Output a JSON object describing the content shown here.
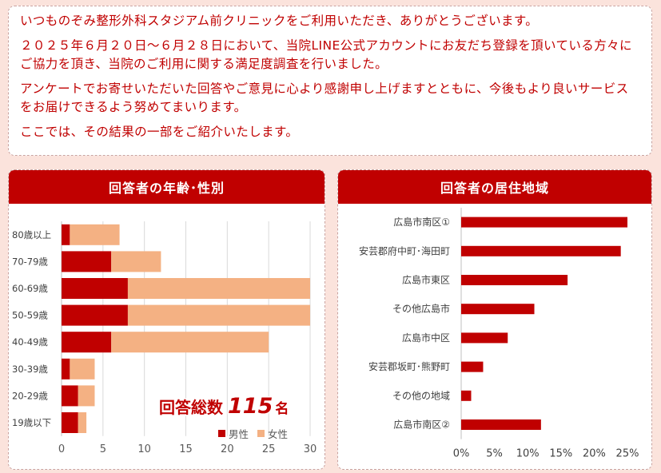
{
  "intro": {
    "line1": "いつものぞみ整形外科スタジアム前クリニックをご利用いただき、ありがとうございます。",
    "line2": "２０２５年６月２０日～６月２８日において、当院LINE公式アカウントにお友だち登録を頂いている方々にご協力を頂き、当院のご利用に関する満足度調査を行いました。",
    "line3": "アンケートでお寄せいただいた回答やご意見に心より感謝申し上げますとともに、今後もより良いサービスをお届けできるよう努めてまいります。",
    "line4": "ここでは、その結果の一部をご紹介いたします。"
  },
  "colors": {
    "male": "#c00000",
    "female": "#f4b183",
    "accent": "#c00000",
    "background": "#fbe3dc"
  },
  "total": {
    "label": "回答総数",
    "value": "115",
    "unit": "名"
  },
  "chart_data": [
    {
      "type": "bar",
      "orientation": "horizontal",
      "stacked": true,
      "title": "回答者の年齢･性別",
      "categories": [
        "80歳以上",
        "70-79歳",
        "60-69歳",
        "50-59歳",
        "40-49歳",
        "30-39歳",
        "20-29歳",
        "19歳以下"
      ],
      "series": [
        {
          "name": "男性",
          "values": [
            1,
            6,
            8,
            8,
            6,
            1,
            2,
            2
          ]
        },
        {
          "name": "女性",
          "values": [
            6,
            6,
            22,
            22,
            19,
            3,
            2,
            1
          ]
        }
      ],
      "xlim": [
        0,
        30
      ],
      "xticks": [
        "0",
        "5",
        "10",
        "15",
        "20",
        "25",
        "30"
      ],
      "grid": true,
      "legend": "bottom-right"
    },
    {
      "type": "bar",
      "orientation": "horizontal",
      "title": "回答者の居住地域",
      "categories": [
        "広島市南区①",
        "安芸郡府中町･海田町",
        "広島市東区",
        "その他広島市",
        "広島市中区",
        "安芸郡坂町･熊野町",
        "その他の地域",
        "広島市南区②"
      ],
      "values": [
        25,
        24,
        16,
        11,
        7,
        3.3,
        1.5,
        12
      ],
      "xlim": [
        0,
        25
      ],
      "xticks": [
        "0%",
        "5%",
        "10%",
        "15%",
        "20%",
        "25%"
      ],
      "grid": false,
      "legend": "none"
    }
  ]
}
